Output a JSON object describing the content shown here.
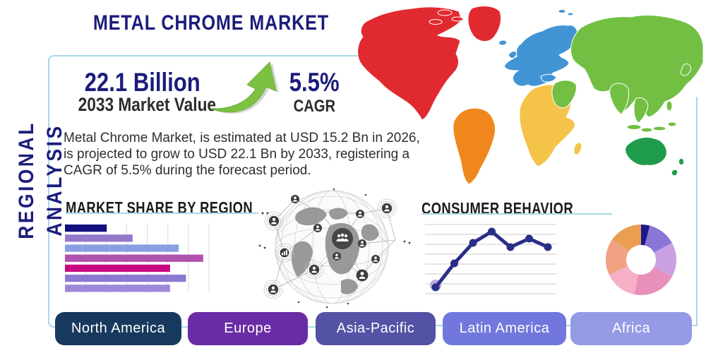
{
  "page": {
    "title": "METAL CHROME MARKET",
    "sidebar_label": "REGIONAL ANALYSIS"
  },
  "theme": {
    "accent_border": "#a8d8ea",
    "navy_text": "#1c1c7c",
    "header_text": "#1b1b1b",
    "arrow_green": "#7cc142"
  },
  "stats": {
    "market_value": "22.1 Billion",
    "market_value_label": "2033 Market Value",
    "cagr_value": "5.5%",
    "cagr_label": "CAGR",
    "description": "Metal Chrome Market, is estimated at USD 15.2 Bn in 2026, is projected to grow to USD 22.1 Bn by 2033, registering a CAGR of 5.5% during the forecast period."
  },
  "sections": {
    "market_share": {
      "title": "MARKET SHARE BY REGION"
    },
    "consumer_behavior": {
      "title": "CONSUMER BEHAVIOR"
    }
  },
  "icons": {
    "growth_arrow": "curved-up-right-green-arrow",
    "globe_network": "grayscale-connected-globe-with-people-nodes"
  },
  "region_buttons": [
    {
      "label": "North America",
      "color": "#17395d"
    },
    {
      "label": "Europe",
      "color": "#6a2ca5"
    },
    {
      "label": "Asia-Pacific",
      "color": "#5452a4"
    },
    {
      "label": "Latin America",
      "color": "#7177dc"
    },
    {
      "label": "Africa",
      "color": "#959ae4"
    }
  ],
  "map": {
    "regions": {
      "north_america": {
        "label": "North America",
        "color": "#e02a30"
      },
      "south_america": {
        "label": "South America",
        "color": "#f0871c"
      },
      "europe": {
        "label": "Europe",
        "color": "#4295d5"
      },
      "africa": {
        "label": "Africa",
        "color": "#f5c34a"
      },
      "asia": {
        "label": "Asia",
        "color": "#72bf44"
      },
      "oceania": {
        "label": "Oceania",
        "color": "#1f9c4b"
      }
    }
  },
  "chart_data": [
    {
      "type": "bar",
      "orientation": "horizontal",
      "title": "MARKET SHARE BY REGION",
      "categories": [
        "",
        "",
        "",
        "",
        "",
        "",
        ""
      ],
      "values": [
        29,
        47,
        79,
        96,
        73,
        84,
        73
      ],
      "xlim": [
        0,
        100
      ],
      "grid": true,
      "colors": [
        "#10107e",
        "#9678ca",
        "#889fe2",
        "#b052ae",
        "#c60980",
        "#8d78d2",
        "#9e87d8"
      ],
      "note": "no axis labels shown; values are relative bar lengths in % of axis"
    },
    {
      "type": "line",
      "title": "CONSUMER BEHAVIOR",
      "x": [
        1,
        2,
        3,
        4,
        5,
        6,
        7
      ],
      "values": [
        14,
        48,
        77,
        93,
        71,
        83,
        71
      ],
      "ylim": [
        0,
        100
      ],
      "grid": "horizontal",
      "line_color": "#2b2e87",
      "first_point_halo_color": "#b5a0e0",
      "note": "no axis labels shown; values estimated from gridlines"
    },
    {
      "type": "donut",
      "title": "",
      "values": [
        4,
        13,
        16,
        20,
        15,
        17,
        15
      ],
      "colors": [
        "#1a1a8f",
        "#8a76d6",
        "#c9a0e2",
        "#e88fba",
        "#f5b0c6",
        "#f2a182",
        "#eb9d51"
      ],
      "start_angle_deg": 0,
      "note": "unlabeled donut; values are % of the ring, clockwise from 12 o'clock"
    }
  ]
}
